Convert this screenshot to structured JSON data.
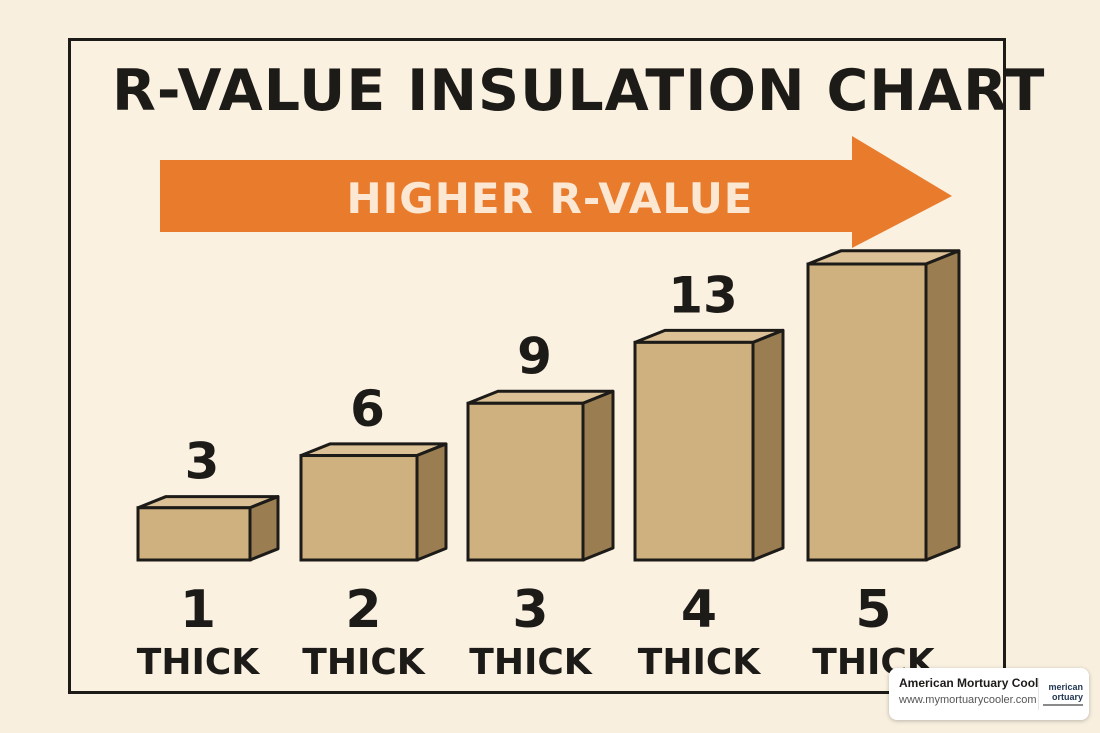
{
  "chart_data": {
    "type": "bar",
    "title": "R-VALUE INSULATION CHART",
    "arrow_label": "HIGHER R-VALUE",
    "categories": [
      "1",
      "2",
      "3",
      "4",
      "5"
    ],
    "category_unit": "THICK",
    "values": [
      3,
      6,
      9,
      13,
      null
    ],
    "value_labels": [
      "3",
      "6",
      "9",
      "13",
      ""
    ],
    "box_heights_relative": [
      3,
      6,
      9,
      12.5,
      17
    ],
    "ylim": [
      0,
      17
    ],
    "xlabel": "",
    "ylabel": "",
    "grid": false,
    "colors": {
      "arrow": "#e97b2d",
      "box_front": "#cfb17f",
      "box_top": "#dcc197",
      "box_side": "#9a7d51",
      "outline": "#1d1b18",
      "background": "#faf1e1"
    }
  },
  "watermark": {
    "name": "American Mortuary Coolers",
    "url": "www.mymortuarycooler.com",
    "logo_line1": "merican",
    "logo_line2": "ortuary"
  }
}
